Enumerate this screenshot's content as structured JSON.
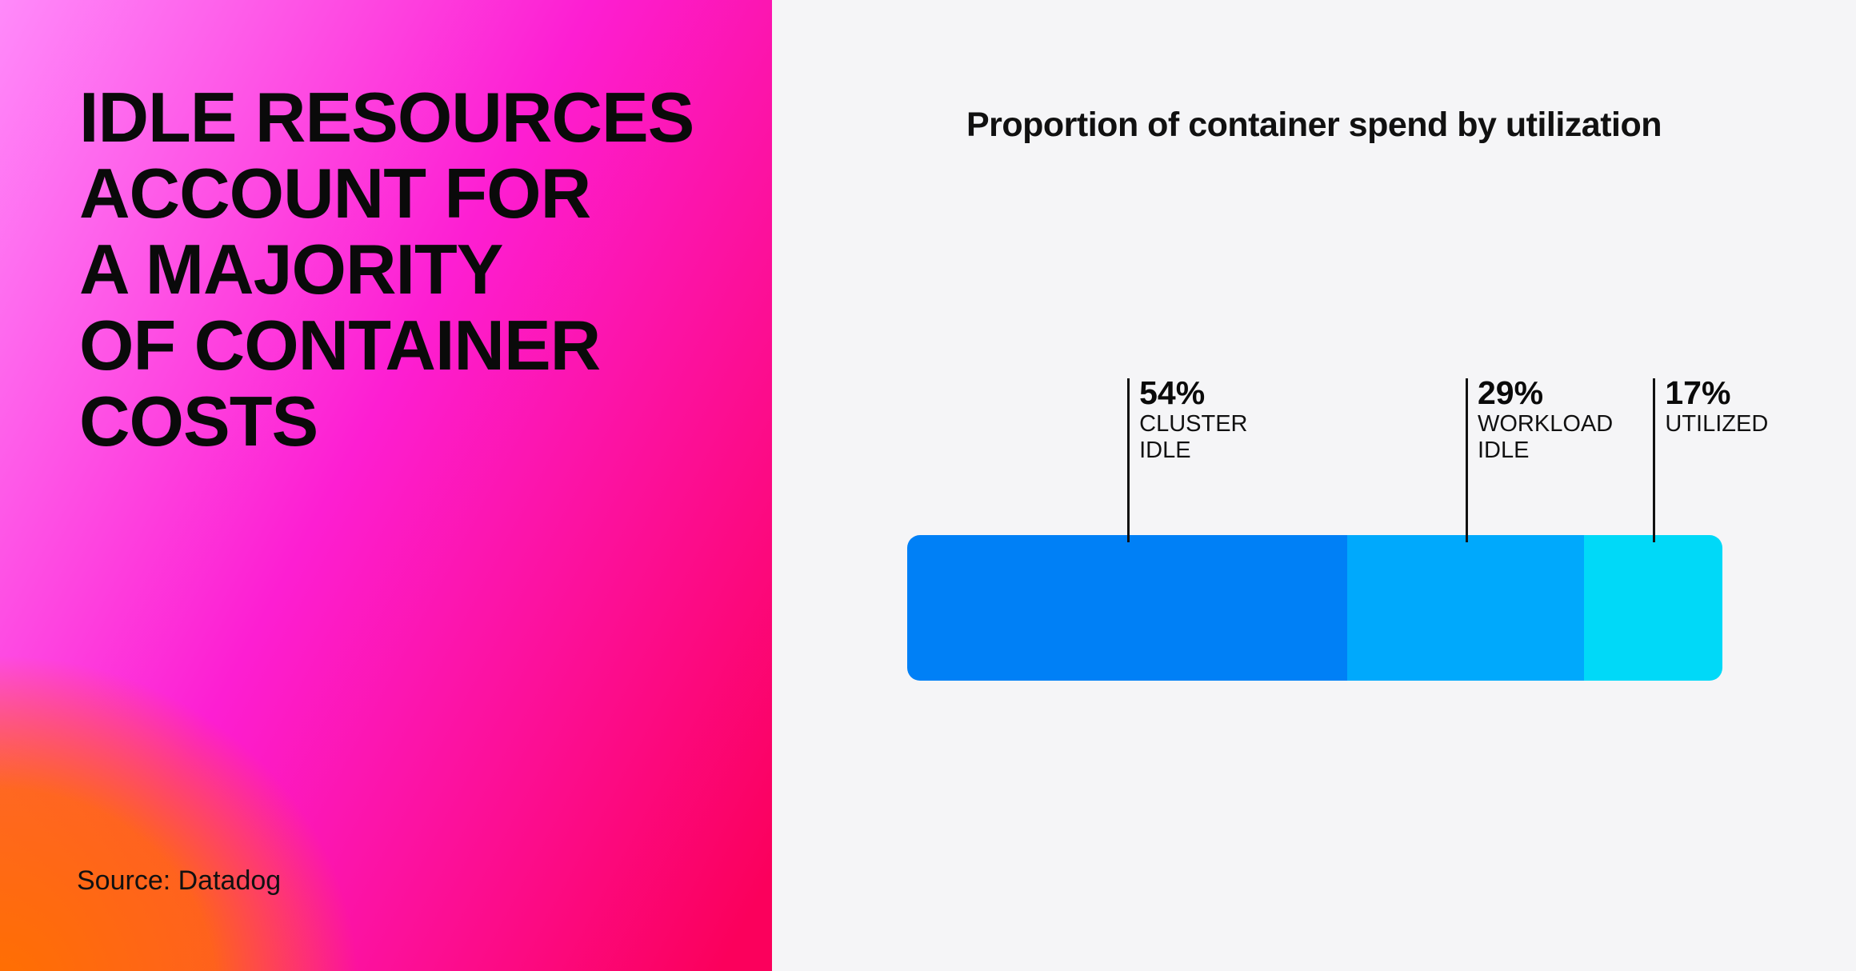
{
  "left_panel": {
    "headline": "IDLE RESOURCES\nACCOUNT FOR\nA MAJORITY\nOF CONTAINER\nCOSTS",
    "source": "Source: Datadog",
    "gradient_colors": {
      "top_left": "#ff8afa",
      "top_right": "#fd1ed2",
      "center": "#fd2e95",
      "bottom_left": "#ff6f00",
      "bottom_right": "#fb005c"
    }
  },
  "right_panel": {
    "background": "#f5f5f7",
    "title": "Proportion of container spend by utilization"
  },
  "chart_data": {
    "type": "bar",
    "variant": "horizontal-stacked-100pct",
    "title": "Proportion of container spend by utilization",
    "categories": [
      "Cluster idle",
      "Workload idle",
      "Utilized"
    ],
    "values": [
      54,
      29,
      17
    ],
    "unit": "%",
    "xlim": [
      0,
      100
    ],
    "grid": false,
    "legend": "none",
    "annotation_style": "tick-lines-above-bar",
    "tick_color": "#111111",
    "segments": [
      {
        "pct": "54%",
        "label": "CLUSTER\nIDLE",
        "value": 54,
        "color": "#0080f6"
      },
      {
        "pct": "29%",
        "label": "WORKLOAD\nIDLE",
        "value": 29,
        "color": "#00a9fc"
      },
      {
        "pct": "17%",
        "label": "UTILIZED",
        "value": 17,
        "color": "#00d9f8"
      }
    ]
  }
}
